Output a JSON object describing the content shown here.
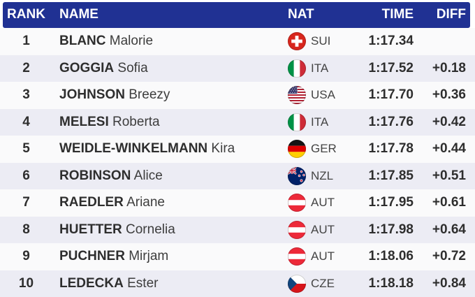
{
  "table": {
    "columns": {
      "rank": "RANK",
      "name": "NAME",
      "nat": "NAT",
      "time": "TIME",
      "diff": "DIFF"
    },
    "rows": [
      {
        "rank": "1",
        "surname": "BLANC",
        "given": "Malorie",
        "nat": "SUI",
        "time": "1:17.34",
        "diff": ""
      },
      {
        "rank": "2",
        "surname": "GOGGIA",
        "given": "Sofia",
        "nat": "ITA",
        "time": "1:17.52",
        "diff": "+0.18"
      },
      {
        "rank": "3",
        "surname": "JOHNSON",
        "given": "Breezy",
        "nat": "USA",
        "time": "1:17.70",
        "diff": "+0.36"
      },
      {
        "rank": "4",
        "surname": "MELESI",
        "given": "Roberta",
        "nat": "ITA",
        "time": "1:17.76",
        "diff": "+0.42"
      },
      {
        "rank": "5",
        "surname": "WEIDLE-WINKELMANN",
        "given": "Kira",
        "nat": "GER",
        "time": "1:17.78",
        "diff": "+0.44"
      },
      {
        "rank": "6",
        "surname": "ROBINSON",
        "given": "Alice",
        "nat": "NZL",
        "time": "1:17.85",
        "diff": "+0.51"
      },
      {
        "rank": "7",
        "surname": "RAEDLER",
        "given": "Ariane",
        "nat": "AUT",
        "time": "1:17.95",
        "diff": "+0.61"
      },
      {
        "rank": "8",
        "surname": "HUETTER",
        "given": "Cornelia",
        "nat": "AUT",
        "time": "1:17.98",
        "diff": "+0.64"
      },
      {
        "rank": "9",
        "surname": "PUCHNER",
        "given": "Mirjam",
        "nat": "AUT",
        "time": "1:18.06",
        "diff": "+0.72"
      },
      {
        "rank": "10",
        "surname": "LEDECKA",
        "given": "Ester",
        "nat": "CZE",
        "time": "1:18.18",
        "diff": "+0.84"
      }
    ]
  },
  "colors": {
    "header_bg": "#203193",
    "header_text": "#ffffff",
    "row_odd": "#fafafb",
    "row_even": "#ececf4",
    "text_dark": "#2e2e2e"
  },
  "flags": {
    "SUI": "swiss-flag-icon",
    "ITA": "italy-flag-icon",
    "USA": "usa-flag-icon",
    "GER": "germany-flag-icon",
    "NZL": "new-zealand-flag-icon",
    "AUT": "austria-flag-icon",
    "CZE": "czechia-flag-icon"
  }
}
